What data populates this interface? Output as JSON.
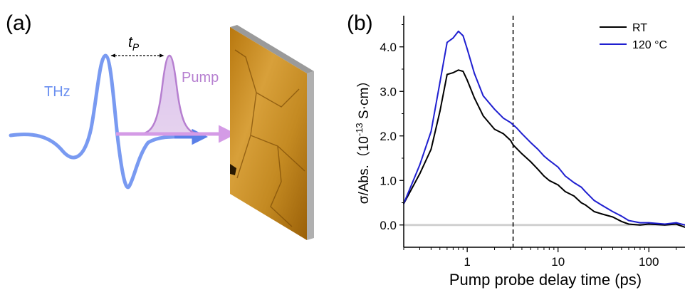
{
  "panel_a": {
    "label": "(a)",
    "thz_label": "THz",
    "pump_label": "Pump",
    "delay_label_main": "t",
    "delay_label_sub": "P",
    "colors": {
      "thz": "#6a8ff0",
      "pump": "#b67fd0",
      "sample": "#c98a1a"
    }
  },
  "chart_data": {
    "type": "line",
    "panel_label": "(b)",
    "xlabel": "Pump probe delay time (ps)",
    "ylabel_main": "σ/Abs.（10",
    "ylabel_exp": "-13",
    "ylabel_unit": " S·cm）",
    "xscale": "log",
    "xlim": [
      0.2,
      250
    ],
    "ylim": [
      -0.5,
      4.7
    ],
    "xticks": [
      1,
      10,
      100
    ],
    "xtick_labels": [
      "1",
      "10",
      "100"
    ],
    "yticks": [
      0.0,
      1.0,
      2.0,
      3.0,
      4.0
    ],
    "ytick_labels": [
      "0.0",
      "1.0",
      "2.0",
      "3.0",
      "4.0"
    ],
    "legend_position": "top-right",
    "zero_line_color": "#d0d0d0",
    "dashed_vline_x": 3.2,
    "series": [
      {
        "name": "RT",
        "color": "#000000",
        "x": [
          0.2,
          0.3,
          0.4,
          0.5,
          0.6,
          0.7,
          0.8,
          0.9,
          1.0,
          1.2,
          1.5,
          2.0,
          2.5,
          3.0,
          3.2,
          3.5,
          4.0,
          5.0,
          6.0,
          7.0,
          8.0,
          10.0,
          12.0,
          15.0,
          18.0,
          20.0,
          25.0,
          30.0,
          40.0,
          50.0,
          60.0,
          80.0,
          100.0,
          150.0,
          200.0,
          250.0
        ],
        "y": [
          0.48,
          1.15,
          1.7,
          2.55,
          3.38,
          3.42,
          3.48,
          3.45,
          3.25,
          2.85,
          2.45,
          2.15,
          2.05,
          1.9,
          1.8,
          1.72,
          1.6,
          1.42,
          1.25,
          1.1,
          1.0,
          0.9,
          0.75,
          0.65,
          0.5,
          0.45,
          0.3,
          0.25,
          0.18,
          0.08,
          0.02,
          0.0,
          0.02,
          0.0,
          0.02,
          -0.05
        ]
      },
      {
        "name": "120 °C",
        "color": "#1f1fd0",
        "x": [
          0.2,
          0.3,
          0.4,
          0.5,
          0.6,
          0.7,
          0.8,
          0.9,
          1.0,
          1.2,
          1.5,
          2.0,
          2.5,
          3.0,
          3.2,
          3.5,
          4.0,
          5.0,
          6.0,
          7.0,
          8.0,
          10.0,
          12.0,
          15.0,
          18.0,
          20.0,
          25.0,
          30.0,
          40.0,
          50.0,
          60.0,
          80.0,
          100.0,
          150.0,
          200.0,
          250.0
        ],
        "y": [
          0.48,
          1.35,
          2.1,
          3.2,
          4.1,
          4.2,
          4.35,
          4.25,
          3.95,
          3.4,
          2.9,
          2.6,
          2.4,
          2.3,
          2.25,
          2.18,
          2.05,
          1.85,
          1.7,
          1.55,
          1.45,
          1.3,
          1.1,
          0.95,
          0.85,
          0.75,
          0.55,
          0.45,
          0.3,
          0.2,
          0.1,
          0.05,
          0.05,
          0.02,
          0.05,
          0.0
        ]
      }
    ]
  }
}
